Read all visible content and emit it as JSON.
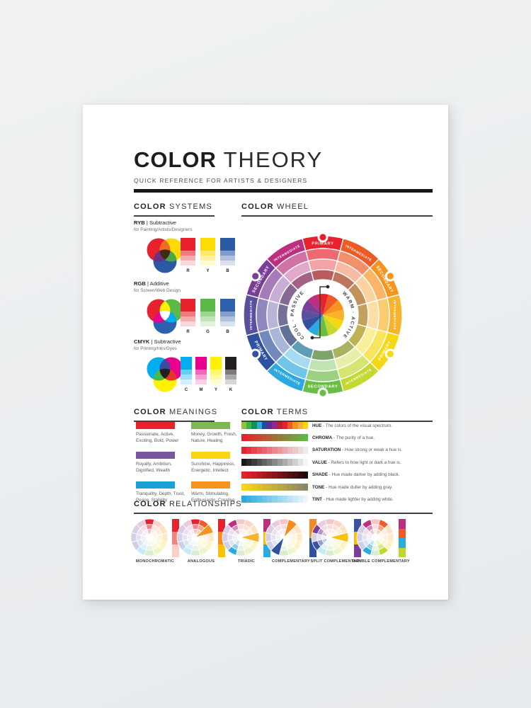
{
  "title": {
    "bold": "COLOR",
    "light": "THEORY",
    "subtitle": "QUICK REFERENCE FOR ARTISTS & DESIGNERS"
  },
  "sections": {
    "systems": {
      "bold": "COLOR",
      "light": "SYSTEMS"
    },
    "wheel": {
      "bold": "COLOR",
      "light": "WHEEL"
    },
    "meanings": {
      "bold": "COLOR",
      "light": "MEANINGS"
    },
    "terms": {
      "bold": "COLOR",
      "light": "TERMS"
    },
    "relationships": {
      "bold": "COLOR",
      "light": "RELATIONSHIPS"
    }
  },
  "systems": [
    {
      "name": "RYB",
      "mode": "Subtractive",
      "usage": "for Painting/Artists/Designers",
      "venn": {
        "a": "#e8222d",
        "b": "#fcdc04",
        "c": "#2b59a5",
        "ab": "#ef6b23",
        "ac": "#6c2f84",
        "bc": "#4aa947",
        "abc": "#3f2a16"
      },
      "swatches": [
        {
          "label": "R",
          "color": "#e8222d"
        },
        {
          "label": "Y",
          "color": "#fcdc04"
        },
        {
          "label": "B",
          "color": "#2b59a5"
        }
      ]
    },
    {
      "name": "RGB",
      "mode": "Additive",
      "usage": "for Screen/Web Design",
      "venn": {
        "a": "#e8222d",
        "b": "#5bb947",
        "c": "#2d61ad",
        "ab": "#fef200",
        "ac": "#e9018d",
        "bc": "#00adee",
        "abc": "#ffffff"
      },
      "swatches": [
        {
          "label": "R",
          "color": "#e8222d"
        },
        {
          "label": "G",
          "color": "#5bb947"
        },
        {
          "label": "B",
          "color": "#2d61ad"
        }
      ]
    },
    {
      "name": "CMYK",
      "mode": "Subtractive",
      "usage": "for Printing/Inks/Dyes",
      "venn": {
        "a": "#00adee",
        "b": "#e9018d",
        "c": "#fef200",
        "ab": "#3a4ba0",
        "ac": "#49b749",
        "bc": "#ea3323",
        "abc": "#231f20"
      },
      "swatches": [
        {
          "label": "C",
          "color": "#00adee"
        },
        {
          "label": "M",
          "color": "#e9018d"
        },
        {
          "label": "Y",
          "color": "#fef200"
        },
        {
          "label": "K",
          "color": "#231f20"
        }
      ]
    }
  ],
  "wheel": {
    "center_left": "COOL · PASSIVE",
    "center_right": "WARM · ACTIVE",
    "segments": [
      {
        "label": "PRIMARY",
        "color": "#e8222d",
        "dot": true
      },
      {
        "label": "INTERMEDIATE",
        "color": "#ee5a24",
        "dot": false
      },
      {
        "label": "SECONDARY",
        "color": "#f7941e",
        "dot": true
      },
      {
        "label": "INTERMEDIATE",
        "color": "#f9b32b",
        "dot": false
      },
      {
        "label": "PRIMARY",
        "color": "#f5d811",
        "dot": true
      },
      {
        "label": "INTERMEDIATE",
        "color": "#c3d830",
        "dot": false
      },
      {
        "label": "SECONDARY",
        "color": "#6abd45",
        "dot": true
      },
      {
        "label": "INTERMEDIATE",
        "color": "#2caadf",
        "dot": false
      },
      {
        "label": "PRIMARY",
        "color": "#30519f",
        "dot": true
      },
      {
        "label": "INTERMEDIATE",
        "color": "#584f9f",
        "dot": false
      },
      {
        "label": "SECONDARY",
        "color": "#7b3e97",
        "dot": true
      },
      {
        "label": "INTERMEDIATE",
        "color": "#bb2f7e",
        "dot": false
      }
    ]
  },
  "meanings": [
    {
      "color": "#e8222d",
      "text": "Passionate, Active, Exciting, Bold, Power"
    },
    {
      "color": "#7cb954",
      "text": "Money, Growth, Fresh, Nature, Healing"
    },
    {
      "color": "#7956a0",
      "text": "Royalty, Ambition, Dignified, Wealth"
    },
    {
      "color": "#f8d616",
      "text": "Sunshine, Happiness, Energetic, Intellect"
    },
    {
      "color": "#1ba0d8",
      "text": "Tranquility, Depth, Trust, Peace, Stability"
    },
    {
      "color": "#f6921e",
      "text": "Warm, Stimulating, Enthusiastic, Creative"
    }
  ],
  "terms": [
    {
      "term": "HUE",
      "def": "The colors of the visual spectrum.",
      "colors": [
        "#8cc63e",
        "#3bb54a",
        "#129352",
        "#2caade",
        "#1f4ea1",
        "#5f2c91",
        "#92278f",
        "#c02026",
        "#e8222d",
        "#f05a28",
        "#f7941e",
        "#fbb03b",
        "#fed500"
      ]
    },
    {
      "term": "CHROMA",
      "def": "The purity of a hue.",
      "from": "#e8222d",
      "to": "#5bb947"
    },
    {
      "term": "SATURATION",
      "def": "How strong or weak a hue is.",
      "from": "#e8222d",
      "to": "#ebecec"
    },
    {
      "term": "VALUE",
      "def": "Refers to how light or dark a hue is.",
      "from": "#1a1718",
      "to": "#f5f5f5"
    },
    {
      "term": "SHADE",
      "def": "Hue made darker by adding black.",
      "from": "#e8222d",
      "to": "#200a0b"
    },
    {
      "term": "TONE",
      "def": "Hue made duller by adding gray.",
      "from": "#f9d616",
      "to": "#8b8567"
    },
    {
      "term": "TINT",
      "def": "Hue made lighter by adding white.",
      "from": "#29aade",
      "to": "#eaf7fd"
    }
  ],
  "relationships": [
    {
      "label": "MONOCHROMATIC",
      "wedges": [
        {
          "i": 0,
          "color": "#e8222d",
          "deep": false
        }
      ],
      "bar": [
        "#e8222d",
        "#f2837b",
        "#fad0c8"
      ]
    },
    {
      "label": "ANALOGOUS",
      "wedges": [
        {
          "i": 0,
          "color": "#e8222d",
          "deep": false
        },
        {
          "i": 1,
          "color": "#f15a24",
          "deep": false
        },
        {
          "i": 2,
          "color": "#f7941e",
          "deep": true
        }
      ],
      "bar": [
        "#e8222d",
        "#f68b1f",
        "#f9c20a"
      ]
    },
    {
      "label": "TRIADIC",
      "wedges": [
        {
          "i": 11,
          "color": "#bb2f7e",
          "deep": false
        },
        {
          "i": 3,
          "color": "#f9b32b",
          "deep": true
        },
        {
          "i": 7,
          "color": "#2caadf",
          "deep": false
        }
      ],
      "bar": [
        "#bb2f7e",
        "#f9c20a",
        "#2caadf"
      ]
    },
    {
      "label": "COMPLEMENTARY",
      "wedges": [
        {
          "i": 1,
          "color": "#f68b1f",
          "deep": true
        },
        {
          "i": 7,
          "color": "#30519f",
          "deep": true
        }
      ],
      "bar": [
        "#f68b1f",
        "#30519f"
      ]
    },
    {
      "label": "SPLIT COMPLEMENTARY",
      "wedges": [
        {
          "i": 3,
          "color": "#f9c20a",
          "deep": true
        },
        {
          "i": 8,
          "color": "#3952a3",
          "deep": false
        },
        {
          "i": 10,
          "color": "#7b3e97",
          "deep": false
        }
      ],
      "bar": [
        "#3952a3",
        "#f9c20a",
        "#7b3e97"
      ]
    },
    {
      "label": "DOUBLE COMPLEMENTARY",
      "wedges": [
        {
          "i": 11,
          "color": "#bb2f7e",
          "deep": false
        },
        {
          "i": 1,
          "color": "#f15a24",
          "deep": false
        },
        {
          "i": 5,
          "color": "#bfd730",
          "deep": false
        },
        {
          "i": 7,
          "color": "#2caadf",
          "deep": false
        }
      ],
      "bar": [
        "#bb2f7e",
        "#f15a24",
        "#2caadf",
        "#bfd730"
      ]
    }
  ]
}
